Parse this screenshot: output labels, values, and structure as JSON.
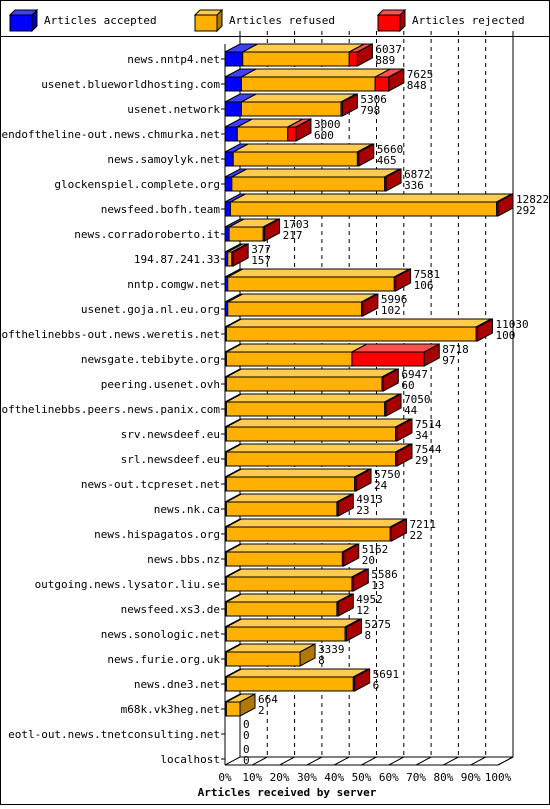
{
  "chart_data": {
    "type": "bar",
    "orientation": "horizontal",
    "stacked": true,
    "title": "",
    "xlabel": "Articles received by server",
    "ylabel": "",
    "xlim": [
      0,
      100
    ],
    "x_ticks": [
      "0%",
      "10%",
      "20%",
      "30%",
      "40%",
      "50%",
      "60%",
      "70%",
      "80%",
      "90%",
      "100%"
    ],
    "legend_position": "top",
    "legend": [
      {
        "key": "accepted",
        "label": "Articles accepted",
        "color": "#0000ff"
      },
      {
        "key": "refused",
        "label": "Articles refused",
        "color": "#ffb000"
      },
      {
        "key": "rejected",
        "label": "Articles rejected",
        "color": "#ff0000"
      }
    ],
    "colors": {
      "accepted": "#0000ff",
      "accepted_top": "#4040ff",
      "accepted_side": "#0000a8",
      "refused": "#ffb000",
      "refused_top": "#ffcc50",
      "refused_side": "#b07800",
      "rejected": "#ff0000",
      "rejected_top": "#ff5050",
      "rejected_side": "#a80000",
      "grid": "#000000"
    },
    "rows": [
      {
        "server": "news.nntp4.net",
        "accepted": 6.5,
        "refused": 39.0,
        "rejected": 3.0,
        "label_top": "6037",
        "label_bottom": "889"
      },
      {
        "server": "usenet.blueworldhosting.com",
        "accepted": 6.0,
        "refused": 49.0,
        "rejected": 5.0,
        "label_top": "7625",
        "label_bottom": "848"
      },
      {
        "server": "usenet.network",
        "accepted": 6.0,
        "refused": 36.5,
        "rejected": 0.5,
        "label_top": "5306",
        "label_bottom": "798"
      },
      {
        "server": "endoftheline-out.news.chmurka.net",
        "accepted": 4.5,
        "refused": 18.5,
        "rejected": 3.0,
        "label_top": "3000",
        "label_bottom": "600"
      },
      {
        "server": "news.samoylyk.net",
        "accepted": 3.0,
        "refused": 45.5,
        "rejected": 0.5,
        "label_top": "5660",
        "label_bottom": "465"
      },
      {
        "server": "glockenspiel.complete.org",
        "accepted": 2.5,
        "refused": 56.0,
        "rejected": 0.5,
        "label_top": "6872",
        "label_bottom": "336"
      },
      {
        "server": "newsfeed.bofh.team",
        "accepted": 2.0,
        "refused": 97.5,
        "rejected": 0.5,
        "label_top": "12822",
        "label_bottom": "292"
      },
      {
        "server": "news.corradoroberto.it",
        "accepted": 1.5,
        "refused": 12.5,
        "rejected": 0.5,
        "label_top": "1703",
        "label_bottom": "217"
      },
      {
        "server": "194.87.241.33",
        "accepted": 1.0,
        "refused": 1.5,
        "rejected": 0.5,
        "label_top": "377",
        "label_bottom": "157"
      },
      {
        "server": "nntp.comgw.net",
        "accepted": 1.0,
        "refused": 61.0,
        "rejected": 0.5,
        "label_top": "7581",
        "label_bottom": "106"
      },
      {
        "server": "usenet.goja.nl.eu.org",
        "accepted": 1.0,
        "refused": 49.0,
        "rejected": 0.5,
        "label_top": "5996",
        "label_bottom": "102"
      },
      {
        "server": "endofthelinebbs-out.news.weretis.net",
        "accepted": 0.5,
        "refused": 91.5,
        "rejected": 0.5,
        "label_top": "11030",
        "label_bottom": "100"
      },
      {
        "server": "newsgate.tebibyte.org",
        "accepted": 0.5,
        "refused": 46.0,
        "rejected": 26.5,
        "label_top": "8718",
        "label_bottom": "97"
      },
      {
        "server": "peering.usenet.ovh",
        "accepted": 0.5,
        "refused": 57.0,
        "rejected": 0.5,
        "label_top": "6947",
        "label_bottom": "60"
      },
      {
        "server": "endofthelinebbs.peers.news.panix.com",
        "accepted": 0.5,
        "refused": 58.0,
        "rejected": 0.5,
        "label_top": "7050",
        "label_bottom": "44"
      },
      {
        "server": "srv.newsdeef.eu",
        "accepted": 0.5,
        "refused": 62.0,
        "rejected": 0.5,
        "label_top": "7514",
        "label_bottom": "34"
      },
      {
        "server": "srl.newsdeef.eu",
        "accepted": 0.5,
        "refused": 62.0,
        "rejected": 0.5,
        "label_top": "7544",
        "label_bottom": "29"
      },
      {
        "server": "news-out.tcpreset.net",
        "accepted": 0.5,
        "refused": 47.0,
        "rejected": 0.5,
        "label_top": "5750",
        "label_bottom": "24"
      },
      {
        "server": "news.nk.ca",
        "accepted": 0.5,
        "refused": 40.5,
        "rejected": 0.5,
        "label_top": "4913",
        "label_bottom": "23"
      },
      {
        "server": "news.hispagatos.org",
        "accepted": 0.5,
        "refused": 60.0,
        "rejected": 0.5,
        "label_top": "7211",
        "label_bottom": "22"
      },
      {
        "server": "news.bbs.nz",
        "accepted": 0.5,
        "refused": 42.5,
        "rejected": 0.5,
        "label_top": "5162",
        "label_bottom": "20"
      },
      {
        "server": "outgoing.news.lysator.liu.se",
        "accepted": 0.5,
        "refused": 46.0,
        "rejected": 0.5,
        "label_top": "5586",
        "label_bottom": "13"
      },
      {
        "server": "newsfeed.xs3.de",
        "accepted": 0.5,
        "refused": 40.5,
        "rejected": 0.5,
        "label_top": "4952",
        "label_bottom": "12"
      },
      {
        "server": "news.sonologic.net",
        "accepted": 0.5,
        "refused": 43.5,
        "rejected": 0.5,
        "label_top": "5275",
        "label_bottom": "8"
      },
      {
        "server": "news.furie.org.uk",
        "accepted": 0.5,
        "refused": 27.0,
        "rejected": 0.0,
        "label_top": "3339",
        "label_bottom": "8"
      },
      {
        "server": "news.dne3.net",
        "accepted": 0.5,
        "refused": 46.5,
        "rejected": 0.5,
        "label_top": "5691",
        "label_bottom": "6"
      },
      {
        "server": "m68k.vk3heg.net",
        "accepted": 0.5,
        "refused": 5.0,
        "rejected": 0.0,
        "label_top": "664",
        "label_bottom": "2"
      },
      {
        "server": "eotl-out.news.tnetconsulting.net",
        "accepted": 0.0,
        "refused": 0.0,
        "rejected": 0.0,
        "label_top": "0",
        "label_bottom": "0"
      },
      {
        "server": "localhost",
        "accepted": 0.0,
        "refused": 0.0,
        "rejected": 0.0,
        "label_top": "0",
        "label_bottom": "0"
      }
    ]
  }
}
